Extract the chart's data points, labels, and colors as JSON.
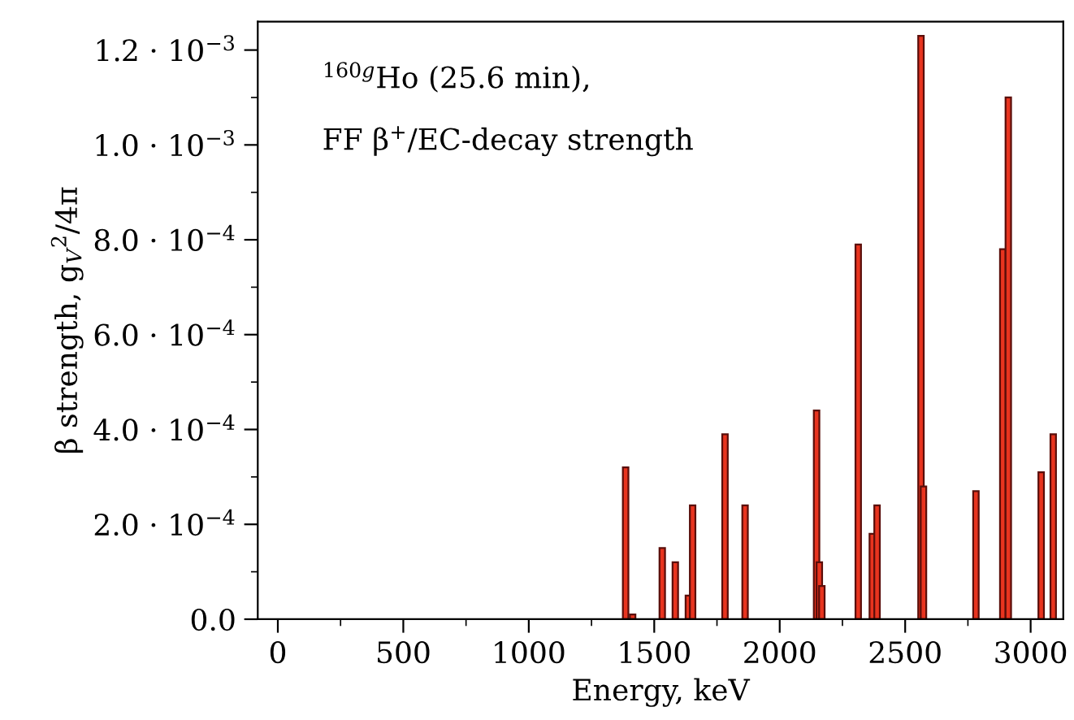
{
  "chart_data": {
    "type": "bar",
    "xlabel": "Energy, keV",
    "ylabel": "β strength, g$_{V}$$^{2}$/4π",
    "annotations": [
      "$^{160g}$Ho (25.6 min),",
      "FF β$^{+}$/EC-decay strength"
    ],
    "x": [
      1386,
      1414,
      1532,
      1584,
      1636,
      1653,
      1782,
      1862,
      2147,
      2158,
      2168,
      2313,
      2369,
      2388,
      2563,
      2573,
      2782,
      2889,
      2911,
      3042,
      3090
    ],
    "values": [
      0.00032,
      1e-05,
      0.00015,
      0.00012,
      5e-05,
      0.00024,
      0.00039,
      0.00024,
      0.00044,
      0.00012,
      7e-05,
      0.00079,
      0.00018,
      0.00024,
      0.00123,
      0.00028,
      0.00027,
      0.00078,
      0.0011,
      0.00031,
      0.00039
    ],
    "color": "#e8341f",
    "xlim": [
      -80,
      3130
    ],
    "ylim": [
      0,
      0.00126
    ],
    "xticks": [
      0,
      {
        "value": 250,
        "label": null
      },
      500,
      {
        "value": 750,
        "label": null
      },
      1000,
      {
        "value": 1250,
        "label": null
      },
      1500,
      {
        "value": 1750,
        "label": null
      },
      2000,
      {
        "value": 2250,
        "label": null
      },
      2500,
      {
        "value": 2750,
        "label": null
      },
      3000
    ],
    "yticks": [
      {
        "value": 0,
        "label": "0.0"
      },
      {
        "value": 0.0001,
        "label": null
      },
      {
        "value": 0.0002,
        "label": "2.0 · 10$^{−4}$"
      },
      {
        "value": 0.0003,
        "label": null
      },
      {
        "value": 0.0004,
        "label": "4.0 · 10$^{−4}$"
      },
      {
        "value": 0.0005,
        "label": null
      },
      {
        "value": 0.0006,
        "label": "6.0 · 10$^{−4}$"
      },
      {
        "value": 0.0007,
        "label": null
      },
      {
        "value": 0.0008,
        "label": "8.0 · 10$^{−4}$"
      },
      {
        "value": 0.0009,
        "label": null
      },
      {
        "value": 0.001,
        "label": "1.0 · 10$^{−3}$"
      },
      {
        "value": 0.0011,
        "label": null
      },
      {
        "value": 0.0012,
        "label": "1.2 · 10$^{−3}$"
      }
    ],
    "grid": false,
    "legend": false
  }
}
